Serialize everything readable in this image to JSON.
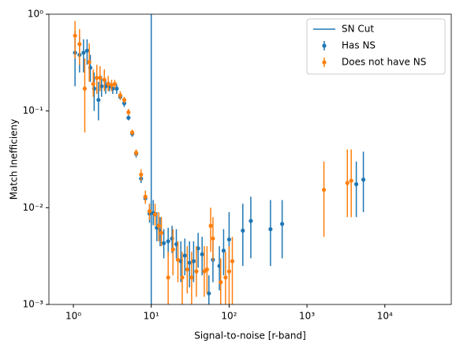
{
  "chart_data": {
    "type": "errorbar",
    "xlabel": "Signal-to-noise [r-band]",
    "ylabel": "Match Inefficieny",
    "xscale": "log",
    "yscale": "log",
    "xlim": [
      0.485,
      71300
    ],
    "ylim": [
      0.001,
      1
    ],
    "xticks": [
      {
        "value": 1,
        "label": "10⁰"
      },
      {
        "value": 10,
        "label": "10¹"
      },
      {
        "value": 100,
        "label": "10²"
      },
      {
        "value": 1000,
        "label": "10³"
      },
      {
        "value": 10000,
        "label": "10⁴"
      }
    ],
    "yticks": [
      {
        "value": 0.001,
        "label": "10⁻³"
      },
      {
        "value": 0.01,
        "label": "10⁻²"
      },
      {
        "value": 0.1,
        "label": "10⁻¹"
      },
      {
        "value": 1,
        "label": "10⁰"
      }
    ],
    "legend": "upper right",
    "vline": {
      "name": "SN Cut",
      "x": 10,
      "color": "#1f77b4"
    },
    "series": [
      {
        "name": "Has NS",
        "color": "#1f77b4",
        "x": [
          1.05,
          1.2,
          1.35,
          1.5,
          1.65,
          1.85,
          2.1,
          2.3,
          2.6,
          2.9,
          3.2,
          3.6,
          4.0,
          4.5,
          5.1,
          5.7,
          6.4,
          7.4,
          8.4,
          9.5,
          10.6,
          11.8,
          13,
          14.5,
          16.5,
          18.5,
          21,
          24,
          27,
          31,
          35,
          40,
          45,
          55,
          62,
          75,
          85,
          100,
          150,
          190,
          340,
          480,
          4300,
          5300
        ],
        "values": [
          0.4,
          0.38,
          0.4,
          0.42,
          0.28,
          0.17,
          0.13,
          0.18,
          0.18,
          0.18,
          0.17,
          0.17,
          0.14,
          0.12,
          0.085,
          0.058,
          0.036,
          0.02,
          0.0125,
          0.0087,
          0.0088,
          0.0062,
          0.0057,
          0.0043,
          0.0045,
          0.0048,
          0.0042,
          0.0028,
          0.0032,
          0.0027,
          0.0028,
          0.0038,
          0.0033,
          0.0013,
          0.0029,
          0.0025,
          0.0036,
          0.0047,
          0.0058,
          0.0073,
          0.006,
          0.0068,
          0.0175,
          0.0195
        ],
        "lower": [
          0.18,
          0.25,
          0.25,
          0.3,
          0.2,
          0.1,
          0.08,
          0.14,
          0.15,
          0.16,
          0.15,
          0.15,
          0.13,
          0.11,
          0.08,
          0.054,
          0.033,
          0.018,
          0.011,
          0.007,
          0.0066,
          0.0045,
          0.004,
          0.003,
          0.0032,
          0.0034,
          0.003,
          0.0017,
          0.002,
          0.0015,
          0.0017,
          0.0024,
          0.002,
          0.001,
          0.0017,
          0.0014,
          0.002,
          0.002,
          0.0025,
          0.003,
          0.0025,
          0.003,
          0.008,
          0.009
        ],
        "upper": [
          0.68,
          0.6,
          0.55,
          0.55,
          0.38,
          0.25,
          0.2,
          0.23,
          0.21,
          0.2,
          0.19,
          0.19,
          0.15,
          0.13,
          0.09,
          0.062,
          0.039,
          0.022,
          0.014,
          0.011,
          0.012,
          0.009,
          0.008,
          0.006,
          0.0062,
          0.0065,
          0.006,
          0.0045,
          0.0048,
          0.0045,
          0.0045,
          0.0055,
          0.005,
          0.002,
          0.0045,
          0.004,
          0.006,
          0.009,
          0.011,
          0.013,
          0.012,
          0.012,
          0.03,
          0.038
        ]
      },
      {
        "name": "Does not have NS",
        "color": "#ff7f0e",
        "x": [
          1.05,
          1.2,
          1.4,
          1.6,
          1.8,
          2.0,
          2.2,
          2.5,
          2.8,
          3.1,
          3.4,
          4.0,
          4.5,
          5.1,
          5.7,
          6.4,
          7.4,
          8.4,
          9.5,
          11.2,
          12.5,
          13.5,
          16.5,
          19,
          22,
          25,
          29,
          33,
          38,
          48,
          52,
          58,
          62,
          78,
          90,
          100,
          110,
          1650,
          3300,
          3700
        ],
        "values": [
          0.6,
          0.49,
          0.17,
          0.32,
          0.19,
          0.22,
          0.22,
          0.21,
          0.19,
          0.185,
          0.19,
          0.145,
          0.13,
          0.097,
          0.06,
          0.037,
          0.022,
          0.013,
          0.0092,
          0.0085,
          0.0065,
          0.0055,
          0.0019,
          0.0037,
          0.0029,
          0.0019,
          0.0023,
          0.0019,
          0.0022,
          0.0022,
          0.0023,
          0.0065,
          0.0048,
          0.0017,
          0.0019,
          0.0022,
          0.0028,
          0.0153,
          0.018,
          0.019
        ],
        "lower": [
          0.35,
          0.3,
          0.06,
          0.2,
          0.14,
          0.15,
          0.16,
          0.16,
          0.16,
          0.16,
          0.17,
          0.13,
          0.12,
          0.09,
          0.056,
          0.034,
          0.019,
          0.011,
          0.0075,
          0.0065,
          0.0045,
          0.004,
          0.001,
          0.002,
          0.0017,
          0.001,
          0.0013,
          0.001,
          0.0012,
          0.0012,
          0.0013,
          0.0035,
          0.0028,
          0.001,
          0.001,
          0.001,
          0.001,
          0.005,
          0.008,
          0.008
        ],
        "upper": [
          0.85,
          0.7,
          0.35,
          0.5,
          0.27,
          0.3,
          0.29,
          0.27,
          0.23,
          0.21,
          0.21,
          0.16,
          0.14,
          0.105,
          0.064,
          0.04,
          0.025,
          0.015,
          0.011,
          0.011,
          0.009,
          0.008,
          0.0035,
          0.006,
          0.0045,
          0.0035,
          0.004,
          0.0035,
          0.004,
          0.004,
          0.004,
          0.01,
          0.008,
          0.003,
          0.0035,
          0.004,
          0.005,
          0.03,
          0.04,
          0.04
        ]
      }
    ]
  }
}
